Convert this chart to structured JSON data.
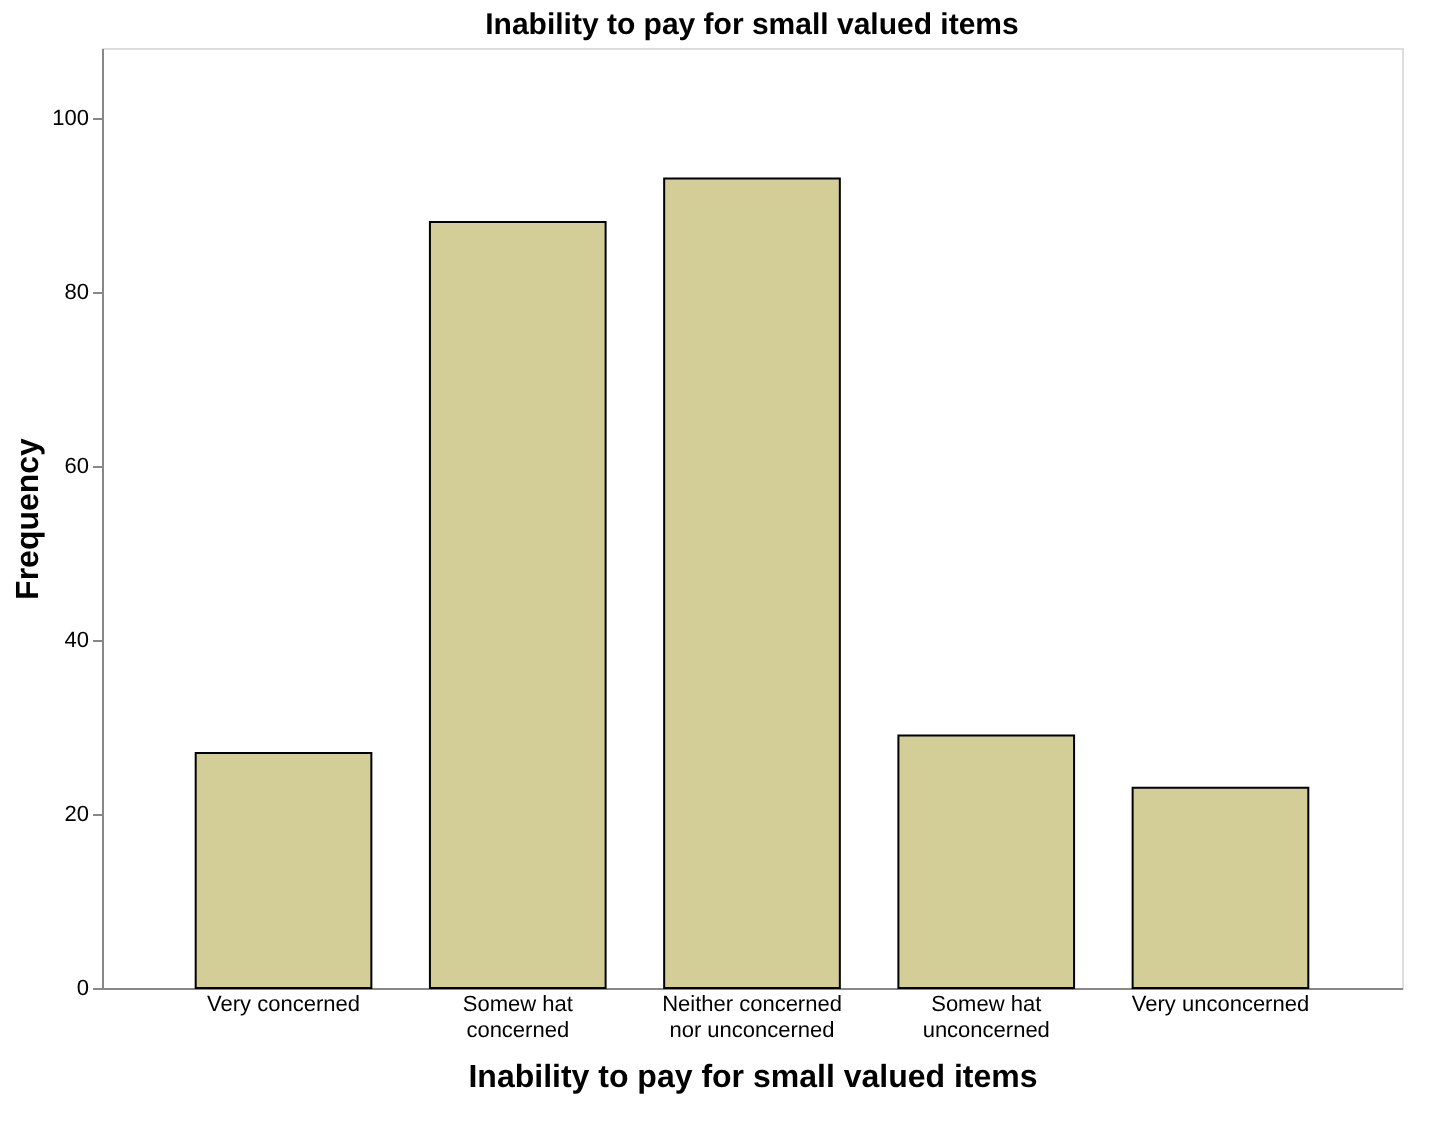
{
  "chart_data": {
    "type": "bar",
    "title": "Inability to pay for small valued items",
    "xlabel": "Inability to pay for small valued items",
    "ylabel": "Frequency",
    "categories": [
      "Very concerned",
      "Somew hat\nconcerned",
      "Neither concerned\nnor unconcerned",
      "Somew hat\nunconcerned",
      "Very unconcerned"
    ],
    "values": [
      27,
      88,
      93,
      29,
      23
    ],
    "color": "#d3ce97",
    "ylim": [
      0,
      108
    ],
    "yticks": [
      0,
      20,
      40,
      60,
      80,
      100
    ],
    "grid": false
  }
}
